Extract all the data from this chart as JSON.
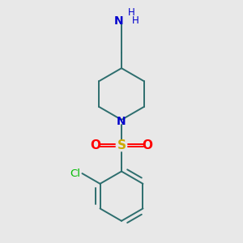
{
  "bg_color": "#e8e8e8",
  "bond_color": "#2d6e6e",
  "N_color": "#0000cc",
  "O_color": "#ff0000",
  "S_color": "#ccaa00",
  "Cl_color": "#00bb00",
  "line_width": 1.4,
  "figsize": [
    3.0,
    3.0
  ],
  "dpi": 100,
  "xlim": [
    -1.5,
    3.5
  ],
  "ylim": [
    -3.5,
    3.5
  ]
}
